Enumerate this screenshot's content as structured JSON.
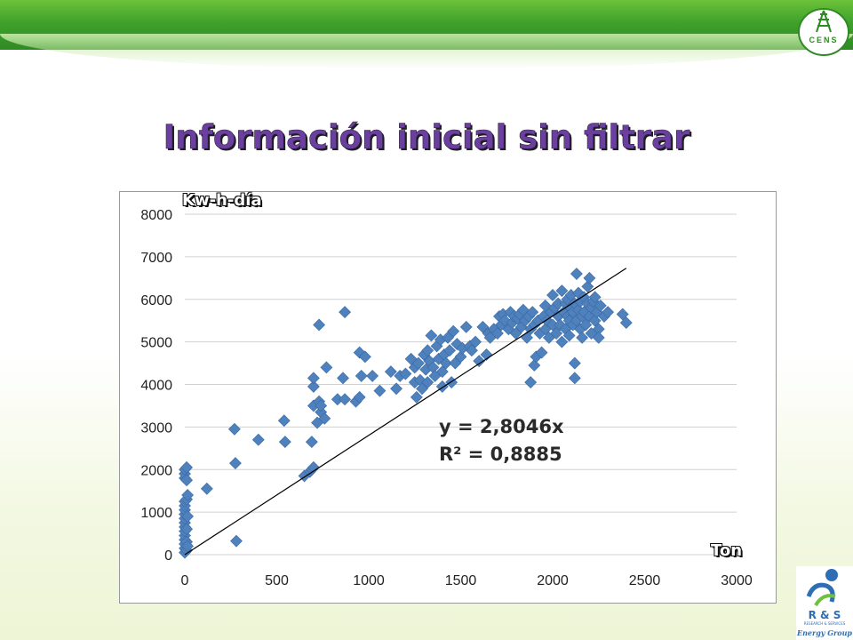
{
  "slide": {
    "title": "Información inicial sin filtrar"
  },
  "logos": {
    "top_right": "CENS",
    "bottom_right": "R & S",
    "bottom_right_sub": "RESEARCH & SERVICES",
    "bottom_right_group": "Energy Group"
  },
  "colors": {
    "title": "#6b3fa0",
    "marker": "#4f81bd",
    "band": "#3fa12b",
    "gridline": "#d0d0d0",
    "trendline": "#000000"
  },
  "chart_data": {
    "type": "scatter",
    "ylabel": "Kw-h-día",
    "xlabel": "Ton",
    "xlim": [
      0,
      3000
    ],
    "ylim": [
      0,
      8000
    ],
    "x_ticks": [
      "0",
      "500",
      "1000",
      "1500",
      "2000",
      "2500",
      "3000"
    ],
    "y_ticks": [
      "0",
      "1000",
      "2000",
      "3000",
      "4000",
      "5000",
      "6000",
      "7000",
      "8000"
    ],
    "grid": "horizontal",
    "marker": "diamond",
    "trendline": {
      "slope": 2.8046,
      "x_start": 0,
      "x_end": 2400
    },
    "equation_line1": "y = 2,8046x",
    "equation_line2": "R² = 0,8885",
    "series": [
      {
        "points": [
          [
            0,
            50
          ],
          [
            0,
            150
          ],
          [
            0,
            250
          ],
          [
            0,
            350
          ],
          [
            0,
            450
          ],
          [
            0,
            550
          ],
          [
            0,
            650
          ],
          [
            0,
            750
          ],
          [
            0,
            850
          ],
          [
            0,
            950
          ],
          [
            0,
            1050
          ],
          [
            0,
            1150
          ],
          [
            0,
            1250
          ],
          [
            0,
            1800
          ],
          [
            0,
            1900
          ],
          [
            0,
            2000
          ],
          [
            10,
            100
          ],
          [
            10,
            300
          ],
          [
            10,
            600
          ],
          [
            10,
            1300
          ],
          [
            10,
            1750
          ],
          [
            10,
            2050
          ],
          [
            15,
            200
          ],
          [
            15,
            900
          ],
          [
            15,
            1400
          ],
          [
            120,
            1550
          ],
          [
            270,
            2950
          ],
          [
            275,
            2150
          ],
          [
            280,
            320
          ],
          [
            400,
            2700
          ],
          [
            540,
            3150
          ],
          [
            545,
            2650
          ],
          [
            650,
            1850
          ],
          [
            680,
            1950
          ],
          [
            690,
            2000
          ],
          [
            700,
            2050
          ],
          [
            690,
            2650
          ],
          [
            700,
            3500
          ],
          [
            700,
            3950
          ],
          [
            700,
            4150
          ],
          [
            720,
            3100
          ],
          [
            740,
            3350
          ],
          [
            760,
            3200
          ],
          [
            730,
            3600
          ],
          [
            740,
            3500
          ],
          [
            730,
            5400
          ],
          [
            770,
            4400
          ],
          [
            830,
            3650
          ],
          [
            860,
            4150
          ],
          [
            870,
            3650
          ],
          [
            870,
            5700
          ],
          [
            930,
            3600
          ],
          [
            950,
            3700
          ],
          [
            950,
            4750
          ],
          [
            960,
            4200
          ],
          [
            980,
            4650
          ],
          [
            1020,
            4200
          ],
          [
            1060,
            3850
          ],
          [
            1120,
            4300
          ],
          [
            1150,
            3900
          ],
          [
            1170,
            4200
          ],
          [
            1200,
            4250
          ],
          [
            1230,
            4600
          ],
          [
            1250,
            4400
          ],
          [
            1250,
            4050
          ],
          [
            1260,
            3700
          ],
          [
            1270,
            4500
          ],
          [
            1280,
            4100
          ],
          [
            1290,
            3900
          ],
          [
            1300,
            4700
          ],
          [
            1310,
            4350
          ],
          [
            1320,
            4050
          ],
          [
            1320,
            4800
          ],
          [
            1330,
            4550
          ],
          [
            1340,
            5150
          ],
          [
            1350,
            4400
          ],
          [
            1360,
            4200
          ],
          [
            1370,
            4900
          ],
          [
            1380,
            4600
          ],
          [
            1390,
            5050
          ],
          [
            1400,
            4300
          ],
          [
            1400,
            3950
          ],
          [
            1410,
            4700
          ],
          [
            1420,
            4500
          ],
          [
            1430,
            5100
          ],
          [
            1440,
            4800
          ],
          [
            1450,
            4050
          ],
          [
            1460,
            5250
          ],
          [
            1470,
            4500
          ],
          [
            1480,
            4950
          ],
          [
            1500,
            4650
          ],
          [
            1510,
            4850
          ],
          [
            1530,
            5350
          ],
          [
            1550,
            4900
          ],
          [
            1560,
            4800
          ],
          [
            1580,
            5000
          ],
          [
            1600,
            4550
          ],
          [
            1620,
            5350
          ],
          [
            1640,
            4700
          ],
          [
            1650,
            5200
          ],
          [
            1660,
            5100
          ],
          [
            1680,
            5300
          ],
          [
            1700,
            5200
          ],
          [
            1710,
            5600
          ],
          [
            1720,
            5400
          ],
          [
            1730,
            5650
          ],
          [
            1740,
            5500
          ],
          [
            1760,
            5300
          ],
          [
            1770,
            5700
          ],
          [
            1780,
            5450
          ],
          [
            1790,
            5600
          ],
          [
            1800,
            5200
          ],
          [
            1810,
            5550
          ],
          [
            1820,
            5650
          ],
          [
            1830,
            5350
          ],
          [
            1840,
            5750
          ],
          [
            1850,
            5500
          ],
          [
            1860,
            5100
          ],
          [
            1870,
            5600
          ],
          [
            1880,
            5300
          ],
          [
            1880,
            4050
          ],
          [
            1890,
            5700
          ],
          [
            1900,
            5400
          ],
          [
            1900,
            4450
          ],
          [
            1910,
            4650
          ],
          [
            1920,
            5500
          ],
          [
            1930,
            5200
          ],
          [
            1940,
            4750
          ],
          [
            1950,
            5600
          ],
          [
            1960,
            5300
          ],
          [
            1960,
            5850
          ],
          [
            1970,
            5500
          ],
          [
            1980,
            5100
          ],
          [
            1990,
            5700
          ],
          [
            2000,
            6100
          ],
          [
            2000,
            5400
          ],
          [
            2010,
            5800
          ],
          [
            2020,
            5200
          ],
          [
            2030,
            5600
          ],
          [
            2030,
            5900
          ],
          [
            2040,
            5400
          ],
          [
            2050,
            6200
          ],
          [
            2050,
            5000
          ],
          [
            2060,
            5700
          ],
          [
            2070,
            5900
          ],
          [
            2070,
            5300
          ],
          [
            2080,
            5600
          ],
          [
            2080,
            6000
          ],
          [
            2090,
            5500
          ],
          [
            2090,
            5150
          ],
          [
            2100,
            5800
          ],
          [
            2100,
            6100
          ],
          [
            2110,
            5400
          ],
          [
            2110,
            5700
          ],
          [
            2120,
            5900
          ],
          [
            2120,
            4500
          ],
          [
            2120,
            4150
          ],
          [
            2130,
            6600
          ],
          [
            2130,
            5500
          ],
          [
            2140,
            5750
          ],
          [
            2140,
            6150
          ],
          [
            2150,
            5300
          ],
          [
            2150,
            5950
          ],
          [
            2160,
            5600
          ],
          [
            2160,
            5100
          ],
          [
            2170,
            6050
          ],
          [
            2170,
            5700
          ],
          [
            2180,
            5400
          ],
          [
            2190,
            5900
          ],
          [
            2190,
            6300
          ],
          [
            2200,
            5600
          ],
          [
            2200,
            6500
          ],
          [
            2210,
            5800
          ],
          [
            2210,
            5200
          ],
          [
            2220,
            5950
          ],
          [
            2230,
            5500
          ],
          [
            2230,
            6050
          ],
          [
            2240,
            5700
          ],
          [
            2250,
            5300
          ],
          [
            2250,
            5100
          ],
          [
            2260,
            5850
          ],
          [
            2280,
            5600
          ],
          [
            2300,
            5700
          ],
          [
            2380,
            5650
          ],
          [
            2400,
            5450
          ]
        ]
      }
    ]
  }
}
